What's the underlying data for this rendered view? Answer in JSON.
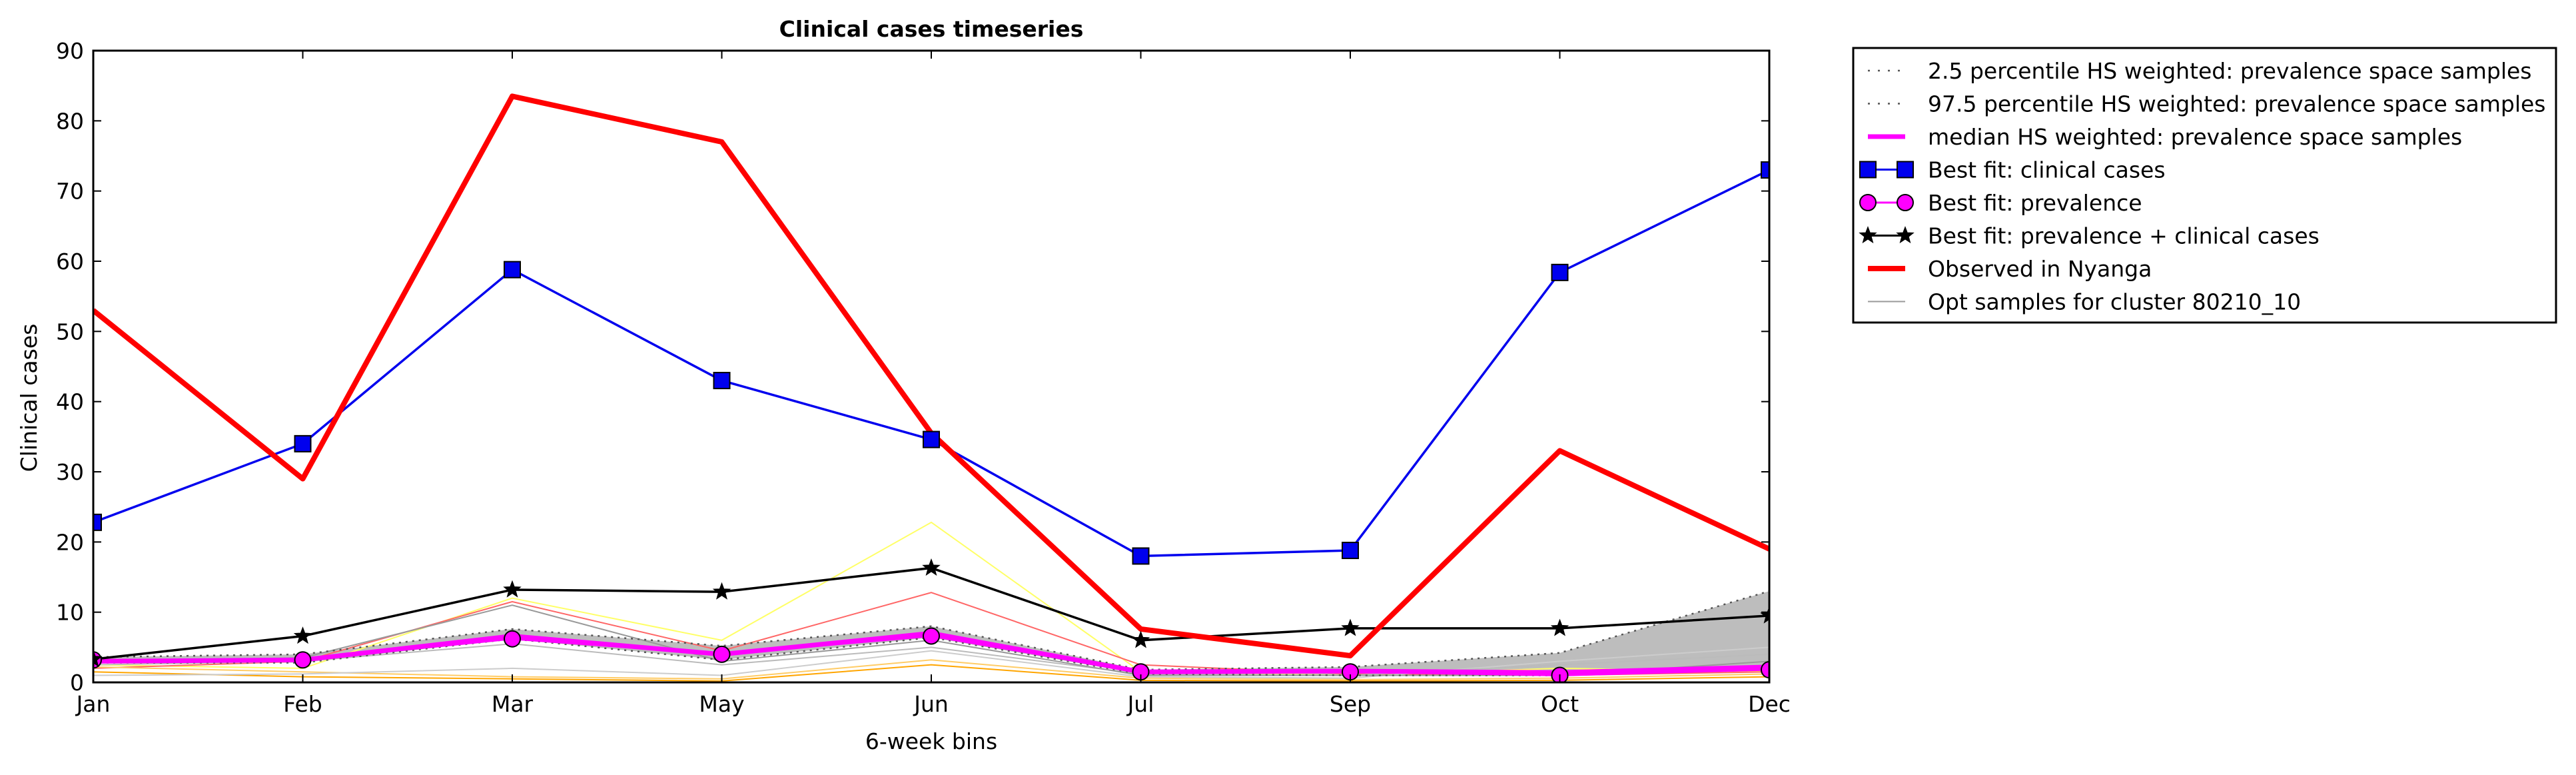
{
  "chart_data": {
    "type": "line",
    "title": "Clinical cases timeseries",
    "xlabel": "6-week bins",
    "ylabel": "Clinical cases",
    "categories": [
      "Jan",
      "Feb",
      "Mar",
      "May",
      "Jun",
      "Jul",
      "Sep",
      "Oct",
      "Dec"
    ],
    "ylim": [
      0,
      90
    ],
    "yticks": [
      "0",
      "10",
      "20",
      "30",
      "40",
      "50",
      "60",
      "70",
      "80",
      "90"
    ],
    "grid": false,
    "legend_position": "outside-top-right",
    "series": [
      {
        "name": "2.5 percentile HS weighted: prevalence space samples",
        "color": "#555555",
        "style": "dotted",
        "values": [
          2.8,
          2.8,
          6.2,
          3.2,
          6.4,
          1.2,
          1.0,
          1.0,
          1.8
        ]
      },
      {
        "name": "97.5 percentile HS weighted: prevalence space samples",
        "color": "#555555",
        "style": "dotted",
        "values": [
          3.6,
          4.0,
          7.6,
          5.2,
          8.0,
          1.8,
          2.2,
          4.2,
          13.0
        ]
      },
      {
        "name": "median HS weighted: prevalence space samples",
        "color": "#ff00ff",
        "style": "solid",
        "values": [
          3.0,
          3.2,
          6.6,
          4.0,
          7.0,
          1.5,
          1.6,
          1.4,
          2.2
        ]
      },
      {
        "name": "Best fit: clinical cases",
        "color": "#0000ee",
        "marker": "square",
        "values": [
          22.8,
          34.0,
          58.8,
          43.0,
          34.6,
          18.0,
          18.8,
          58.4,
          73.0
        ]
      },
      {
        "name": "Best fit: prevalence",
        "color": "#ff00ff",
        "marker": "circle",
        "values": [
          3.2,
          3.2,
          6.2,
          4.0,
          6.6,
          1.5,
          1.5,
          1.0,
          1.8
        ]
      },
      {
        "name": "Best fit: prevalence + clinical cases",
        "color": "#000000",
        "marker": "star",
        "values": [
          3.3,
          6.6,
          13.2,
          12.9,
          16.3,
          6.0,
          7.7,
          7.7,
          9.5
        ]
      },
      {
        "name": "Observed in Nyanga",
        "color": "#ff0000",
        "style": "thick",
        "values": [
          53.0,
          29.0,
          83.5,
          77.0,
          35.5,
          7.6,
          3.8,
          33.0,
          19.0
        ]
      },
      {
        "name": "Opt samples for cluster 80210_10",
        "color": "#999999",
        "style": "thin",
        "values": [
          3.0,
          3.5,
          11.0,
          3.0,
          6.0,
          1.0,
          1.0,
          1.0,
          3.0
        ]
      }
    ],
    "extra_samples": [
      {
        "color": "#ffff66",
        "values": [
          2.5,
          2.0,
          12.0,
          6.0,
          22.8,
          1.5,
          1.0,
          2.0,
          1.5
        ]
      },
      {
        "color": "#ff6666",
        "values": [
          2.0,
          3.0,
          11.5,
          4.5,
          12.8,
          2.5,
          1.2,
          1.0,
          1.5
        ]
      },
      {
        "color": "#ffa500",
        "values": [
          1.5,
          0.8,
          0.5,
          0.2,
          2.5,
          0.3,
          0.2,
          0.3,
          0.8
        ]
      },
      {
        "color": "#ffcc66",
        "values": [
          2.2,
          1.5,
          0.8,
          0.5,
          3.2,
          0.6,
          0.4,
          0.6,
          1.2
        ]
      },
      {
        "color": "#cccccc",
        "values": [
          1.0,
          1.2,
          2.0,
          1.0,
          4.5,
          0.8,
          0.6,
          3.0,
          5.0
        ]
      },
      {
        "color": "#bbbbbb",
        "values": [
          2.5,
          3.0,
          5.5,
          2.5,
          5.0,
          1.2,
          1.0,
          2.5,
          4.0
        ]
      }
    ]
  }
}
